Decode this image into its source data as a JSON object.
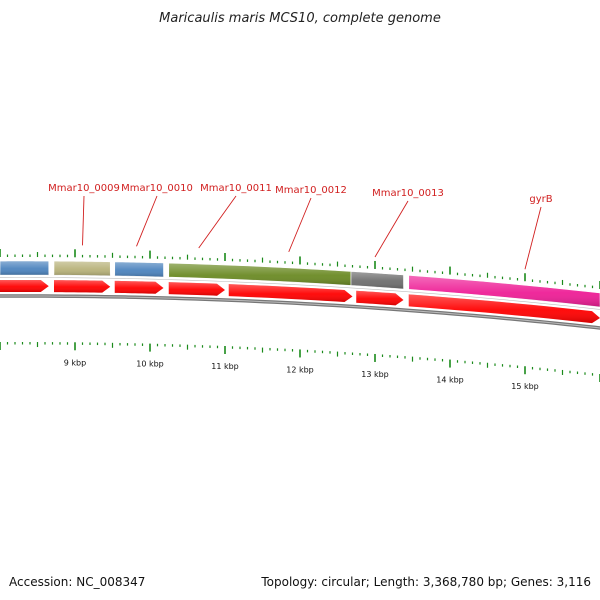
{
  "title": "Maricaulis maris MCS10, complete genome",
  "footer": {
    "accession": "Accession: NC_008347",
    "summary": "Topology: circular; Length: 3,368,780 bp; Genes: 3,116"
  },
  "colors": {
    "label": "#d11f1f",
    "cds": "#ff0000",
    "tick": "#1a8a1a",
    "backbone": "#808080"
  },
  "map": {
    "view_start_kbp": 8.0,
    "view_end_kbp": 16.0,
    "tick_labels": [
      "9 kbp",
      "10 kbp",
      "11 kbp",
      "12 kbp",
      "13 kbp",
      "14 kbp",
      "15 kbp"
    ],
    "tick_values_kbp": [
      9,
      10,
      11,
      12,
      13,
      14,
      15
    ]
  },
  "features": [
    {
      "type": "block",
      "start": 8.0,
      "end": 8.65,
      "color": "#4d84be"
    },
    {
      "type": "block",
      "start": 8.72,
      "end": 9.47,
      "color": "#b8b27a",
      "label": "Mmar10_0009"
    },
    {
      "type": "block",
      "start": 9.53,
      "end": 10.18,
      "color": "#4d84be",
      "label": "Mmar10_0010"
    },
    {
      "type": "block",
      "start": 10.25,
      "end": 12.68,
      "color": "#6b8a24",
      "label": "Mmar10_0011"
    },
    {
      "type": "block",
      "start": 12.68,
      "end": 13.38,
      "color": "#6e6e6e",
      "label": "Mmar10_0013"
    },
    {
      "type": "block",
      "start": 13.45,
      "end": 16.0,
      "color": "#ee1e96",
      "label": "gyrB"
    }
  ],
  "cds": [
    {
      "start": 8.0,
      "end": 8.65
    },
    {
      "start": 8.72,
      "end": 9.47
    },
    {
      "start": 9.53,
      "end": 10.18
    },
    {
      "start": 10.25,
      "end": 11.0
    },
    {
      "start": 11.05,
      "end": 12.7
    },
    {
      "start": 12.75,
      "end": 13.38
    },
    {
      "start": 13.45,
      "end": 16.0
    }
  ],
  "labels": [
    {
      "text": "Mmar10_0009",
      "at": 9.1
    },
    {
      "text": "Mmar10_0010",
      "at": 9.82
    },
    {
      "text": "Mmar10_0011",
      "at": 10.65
    },
    {
      "text": "Mmar10_0012",
      "at": 11.85
    },
    {
      "text": "Mmar10_0013",
      "at": 13.0
    },
    {
      "text": "gyrB",
      "at": 15.0
    }
  ]
}
